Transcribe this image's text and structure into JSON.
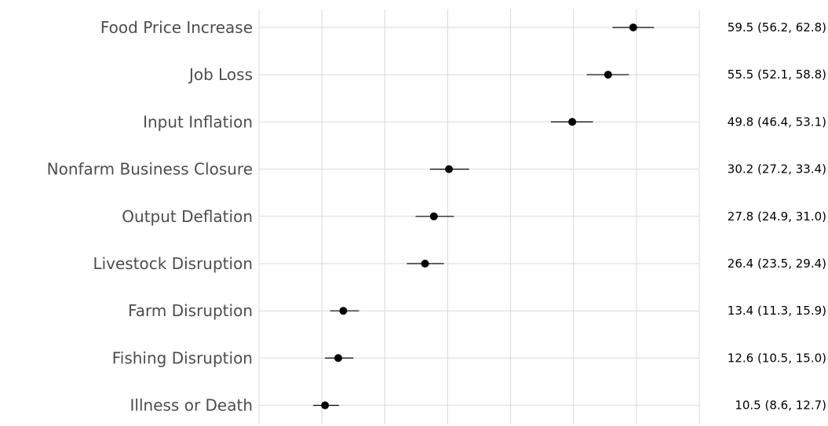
{
  "chart_data": {
    "type": "forest",
    "categories": [
      "Food Price Increase",
      "Job Loss",
      "Input Inflation",
      "Nonfarm Business Closure",
      "Output Deflation",
      "Livestock Disruption",
      "Farm Disruption",
      "Fishing Disruption",
      "Illness or Death"
    ],
    "series": [
      {
        "values": [
          59.5,
          55.5,
          49.8,
          30.2,
          27.8,
          26.4,
          13.4,
          12.6,
          10.5
        ],
        "lower": [
          56.2,
          52.1,
          46.4,
          27.2,
          24.9,
          23.5,
          11.3,
          10.5,
          8.6
        ],
        "upper": [
          62.8,
          58.8,
          53.1,
          33.4,
          31.0,
          29.4,
          15.9,
          15.0,
          12.7
        ]
      }
    ],
    "value_labels": [
      "59.5 (56.2, 62.8)",
      "55.5 (52.1, 58.8)",
      "49.8 (46.4, 53.1)",
      "30.2 (27.2, 33.4)",
      "27.8 (24.9, 31.0)",
      "26.4 (23.5, 29.4)",
      "13.4 (11.3, 15.9)",
      "12.6 (10.5, 15.0)",
      "10.5 (8.6, 12.7)"
    ],
    "xlim": [
      0,
      70
    ],
    "x_gridlines": [
      0,
      10,
      20,
      30,
      40,
      50,
      60,
      70
    ],
    "grid": true,
    "title": "",
    "xlabel": "",
    "ylabel": ""
  },
  "colors": {
    "point": "#000000",
    "ci_line": "#000000",
    "grid": "#d9d9d9",
    "category_text": "#4d4d4d",
    "value_text": "#000000"
  }
}
